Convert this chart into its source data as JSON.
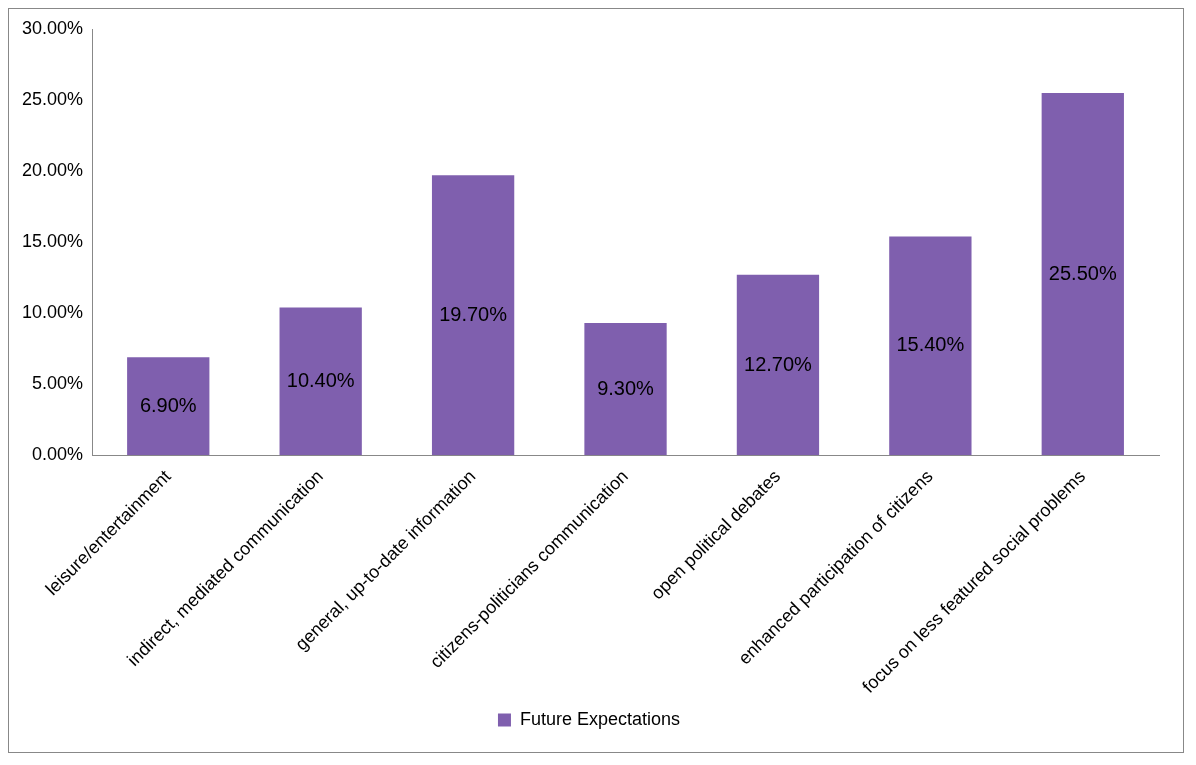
{
  "chart_data": {
    "type": "bar",
    "categories": [
      "leisure/entertainment",
      "indirect, mediated communication",
      "general, up-to-date information",
      "citizens-politicians communication",
      "open political debates",
      "enhanced participation of citizens",
      "focus on less featured social problems"
    ],
    "series": [
      {
        "name": "Future Expectations",
        "color": "#7f5fae",
        "values": [
          6.9,
          10.4,
          19.7,
          9.3,
          12.7,
          15.4,
          25.5
        ],
        "value_labels": [
          "6.90%",
          "10.40%",
          "19.70%",
          "9.30%",
          "12.70%",
          "15.40%",
          "25.50%"
        ]
      }
    ],
    "ylim": [
      0,
      30
    ],
    "yticks": [
      {
        "value": 0,
        "label": "0.00%"
      },
      {
        "value": 5,
        "label": "5.00%"
      },
      {
        "value": 10,
        "label": "10.00%"
      },
      {
        "value": 15,
        "label": "15.00%"
      },
      {
        "value": 20,
        "label": "20.00%"
      },
      {
        "value": 25,
        "label": "25.00%"
      },
      {
        "value": 30,
        "label": "30.00%"
      }
    ],
    "grid": false,
    "legend": "bottom"
  }
}
